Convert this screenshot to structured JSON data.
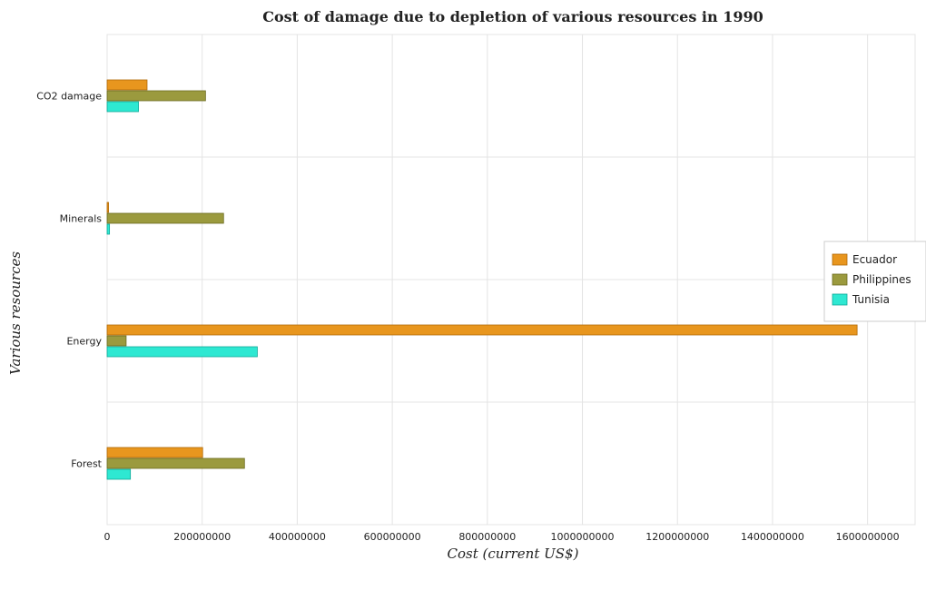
{
  "chart_data": {
    "type": "bar",
    "orientation": "horizontal",
    "title": "Cost of damage due to depletion of various resources in 1990",
    "xlabel": "Cost (current US$)",
    "ylabel": "Various resources",
    "categories": [
      "CO2 damage",
      "Minerals",
      "Energy",
      "Forest"
    ],
    "x_ticks": [
      0,
      200000000,
      400000000,
      600000000,
      800000000,
      1000000000,
      1200000000,
      1400000000,
      1600000000
    ],
    "x_tick_labels": [
      "0",
      "200000000",
      "400000000",
      "600000000",
      "800000000",
      "1000000000",
      "1200000000",
      "1400000000",
      "1600000000"
    ],
    "xlim": [
      0,
      1700000000
    ],
    "grid": true,
    "legend_position": "right",
    "series": [
      {
        "name": "Ecuador",
        "color": "#e8961e",
        "edge": "#b06a08",
        "values": [
          84000000,
          3000000,
          1578000000,
          201000000
        ]
      },
      {
        "name": "Philippines",
        "color": "#9b9a3e",
        "edge": "#6c6b20",
        "values": [
          207000000,
          245000000,
          40000000,
          289000000
        ]
      },
      {
        "name": "Tunisia",
        "color": "#2ee8d2",
        "edge": "#10a898",
        "values": [
          66000000,
          5000000,
          316000000,
          49000000
        ]
      }
    ]
  }
}
